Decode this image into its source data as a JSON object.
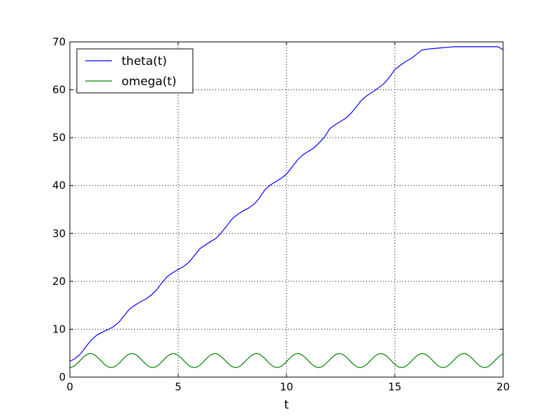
{
  "chart_data": {
    "type": "line",
    "xlabel": "t",
    "ylabel": "",
    "xlim": [
      0,
      20
    ],
    "ylim": [
      0,
      70
    ],
    "xticks": [
      0,
      5,
      10,
      15,
      20
    ],
    "yticks": [
      0,
      10,
      20,
      30,
      40,
      50,
      60,
      70
    ],
    "grid": true,
    "legend_position": "top-left",
    "series": [
      {
        "name": "theta(t)",
        "color": "#0000ff",
        "x": [
          0,
          0.25,
          0.5,
          0.75,
          1,
          1.25,
          1.5,
          1.75,
          2,
          2.25,
          2.5,
          2.75,
          3,
          3.25,
          3.5,
          3.75,
          4,
          4.25,
          4.5,
          4.75,
          5,
          5.25,
          5.5,
          5.75,
          6,
          6.25,
          6.5,
          6.75,
          7,
          7.25,
          7.5,
          7.75,
          8,
          8.25,
          8.5,
          8.75,
          9,
          9.25,
          9.5,
          9.75,
          10,
          10.25,
          10.5,
          10.75,
          11,
          11.25,
          11.5,
          11.75,
          12,
          12.25,
          12.5,
          12.75,
          13,
          13.25,
          13.5,
          13.75,
          14,
          14.25,
          14.5,
          14.75,
          15,
          15.25,
          15.5,
          15.75,
          16,
          16.25,
          16.5,
          16.75,
          17,
          17.25,
          17.5,
          17.75,
          18,
          18.25,
          18.5,
          18.75,
          19,
          19.25,
          19.5,
          19.75,
          20
        ],
        "y": [
          3.3,
          3.9,
          4.9,
          6.4,
          7.8,
          8.8,
          9.4,
          9.9,
          10.5,
          11.4,
          12.8,
          14.2,
          15.0,
          15.7,
          16.3,
          17.1,
          18.2,
          19.7,
          21.0,
          21.8,
          22.5,
          23.1,
          24.0,
          25.4,
          26.8,
          27.6,
          28.3,
          29.0,
          30.2,
          31.6,
          33.1,
          34.0,
          34.7,
          35.3,
          36.1,
          37.4,
          39.1,
          40.1,
          40.8,
          41.5,
          42.4,
          43.8,
          45.3,
          46.4,
          47.1,
          47.8,
          48.9,
          50.1,
          51.9,
          52.7,
          53.4,
          54.1,
          55.2,
          56.6,
          58.0,
          58.9,
          59.6,
          60.4,
          61.3,
          62.6,
          64.2,
          65.1,
          65.9,
          66.5,
          67.4,
          68.3,
          68.5,
          68.6,
          68.7,
          68.8,
          68.9,
          69.0,
          69.0,
          69.0,
          69.0,
          69.0,
          69.0,
          69.0,
          69.0,
          69.0,
          68.4
        ]
      },
      {
        "name": "omega(t)",
        "color": "#008000",
        "period": 1.915,
        "amplitude": 1.45,
        "offset": 3.45,
        "phase_peak": 0.95,
        "x_range": [
          0,
          20
        ]
      }
    ]
  }
}
